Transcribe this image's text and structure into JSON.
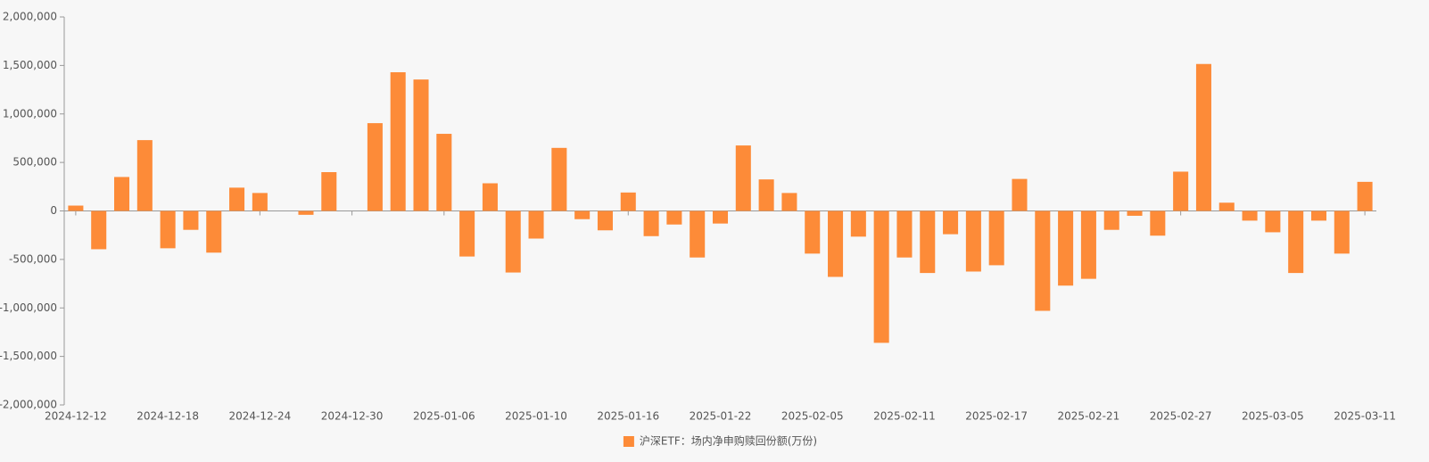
{
  "chart_data": {
    "type": "bar",
    "categories": [
      "2024-12-12",
      null,
      null,
      null,
      "2024-12-18",
      null,
      null,
      null,
      "2024-12-24",
      null,
      null,
      null,
      "2024-12-30",
      null,
      null,
      null,
      "2025-01-06",
      null,
      null,
      null,
      "2025-01-10",
      null,
      null,
      null,
      "2025-01-16",
      null,
      null,
      null,
      "2025-01-22",
      null,
      null,
      null,
      "2025-02-05",
      null,
      null,
      null,
      "2025-02-11",
      null,
      null,
      null,
      "2025-02-17",
      null,
      null,
      null,
      "2025-02-21",
      null,
      null,
      null,
      "2025-02-27",
      null,
      null,
      null,
      "2025-03-05",
      null,
      null,
      null,
      "2025-03-11"
    ],
    "series": [
      {
        "name": "沪深ETF：场内净申购赎回份额(万份)",
        "color": "#fd8b38",
        "values": [
          55000,
          -395000,
          350000,
          730000,
          -385000,
          -195000,
          -430000,
          240000,
          185000,
          0,
          -40000,
          400000,
          0,
          905000,
          1430000,
          1355000,
          795000,
          -470000,
          285000,
          -635000,
          -285000,
          650000,
          -85000,
          -200000,
          190000,
          -260000,
          -140000,
          -480000,
          -130000,
          675000,
          325000,
          185000,
          -440000,
          -680000,
          -265000,
          -1360000,
          -480000,
          -640000,
          -240000,
          -625000,
          -560000,
          330000,
          -1030000,
          -770000,
          -700000,
          -195000,
          -50000,
          -255000,
          405000,
          1515000,
          85000,
          -100000,
          -220000,
          -640000,
          -100000,
          -440000,
          300000
        ]
      }
    ],
    "ylim": [
      -2000000,
      2000000
    ],
    "yticks": [
      {
        "value": -2000000,
        "label": "-2,000,000"
      },
      {
        "value": -1500000,
        "label": "-1,500,000"
      },
      {
        "value": -1000000,
        "label": "-1,000,000"
      },
      {
        "value": -500000,
        "label": "-500,000"
      },
      0,
      {
        "value": 500000,
        "label": "500,000"
      },
      {
        "value": 1000000,
        "label": "1,000,000"
      },
      {
        "value": 1500000,
        "label": "1,500,000"
      },
      {
        "value": 2000000,
        "label": "2,000,000"
      }
    ],
    "grid": false,
    "legend": "bottom"
  }
}
